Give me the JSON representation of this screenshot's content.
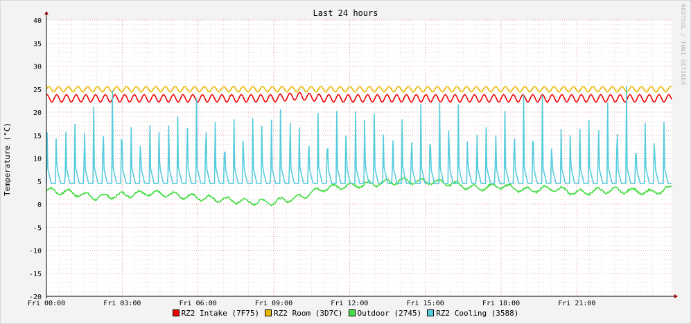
{
  "chart_data": {
    "type": "line",
    "title": "Last 24 hours",
    "ylabel": "Temperature (°C)",
    "xlabel": "",
    "watermark": "RRDTOOL / TOBI OETIKER",
    "ylim": [
      -20,
      40
    ],
    "yticks": [
      40,
      35,
      30,
      25,
      20,
      15,
      10,
      5,
      0,
      -5,
      -10,
      -15,
      -20
    ],
    "xlim_hours": [
      0,
      24.75
    ],
    "xticks": [
      {
        "label": "Fri 00:00",
        "hour": 0
      },
      {
        "label": "Fri 03:00",
        "hour": 3
      },
      {
        "label": "Fri 06:00",
        "hour": 6
      },
      {
        "label": "Fri 09:00",
        "hour": 9
      },
      {
        "label": "Fri 12:00",
        "hour": 12
      },
      {
        "label": "Fri 15:00",
        "hour": 15
      },
      {
        "label": "Fri 18:00",
        "hour": 18
      },
      {
        "label": "Fri 21:00",
        "hour": 21
      }
    ],
    "grid": true,
    "legend_position": "bottom",
    "series": [
      {
        "name": "RZ2 Intake (7F75)",
        "color": "#ee0000",
        "x": [
          0,
          1,
          2,
          3,
          4,
          5,
          6,
          7,
          8,
          9,
          10,
          11,
          12,
          13,
          14,
          15,
          16,
          17,
          18,
          19,
          20,
          21,
          22,
          23,
          24,
          24.75
        ],
        "y": [
          23,
          23,
          23,
          23,
          23,
          23,
          23,
          23,
          23,
          23,
          23.5,
          23,
          23,
          23,
          23,
          23,
          23,
          23,
          23,
          23,
          23,
          23,
          23,
          23,
          23,
          23
        ],
        "range": [
          22,
          24
        ]
      },
      {
        "name": "RZ2 Room (3D7C)",
        "color": "#e8b800",
        "x": [
          0,
          1,
          2,
          3,
          4,
          5,
          6,
          7,
          8,
          9,
          10,
          11,
          12,
          13,
          14,
          15,
          16,
          17,
          18,
          19,
          20,
          21,
          22,
          23,
          24,
          24.75
        ],
        "y": [
          25,
          25,
          25,
          25,
          25,
          25,
          25,
          25,
          25,
          25,
          25,
          25,
          25,
          25,
          25,
          25,
          25,
          25,
          25,
          25,
          25,
          25,
          25,
          25,
          25,
          25
        ],
        "range": [
          24.5,
          26
        ]
      },
      {
        "name": "Outdoor (2745)",
        "color": "#44dd44",
        "x": [
          0,
          1,
          2,
          3,
          4,
          5,
          6,
          7,
          8,
          9,
          10,
          11,
          12,
          13,
          14,
          15,
          16,
          17,
          18,
          19,
          20,
          21,
          22,
          23,
          24,
          24.75
        ],
        "y": [
          3,
          2.5,
          1.5,
          2,
          2.5,
          2,
          1.5,
          1,
          0.5,
          0.5,
          1.5,
          3.5,
          4,
          4.5,
          5,
          5,
          4.5,
          3.5,
          4,
          3,
          3.5,
          2.5,
          3,
          3,
          2.5,
          3.5
        ]
      },
      {
        "name": "RZ2 Cooling (3588)",
        "color": "#55ccdd",
        "x": [
          0,
          1,
          2,
          3,
          4,
          5,
          6,
          7,
          8,
          9,
          10,
          11,
          12,
          13,
          14,
          15,
          16,
          17,
          18,
          19,
          20,
          21,
          22,
          23,
          24,
          24.75
        ],
        "y": [
          5,
          5,
          5,
          5,
          5,
          5,
          5,
          5,
          5,
          5,
          5,
          5,
          5,
          5,
          5,
          5,
          5,
          5,
          5,
          5,
          5,
          5,
          5,
          5,
          5,
          5
        ],
        "range": [
          4.5,
          27.5
        ]
      }
    ]
  }
}
